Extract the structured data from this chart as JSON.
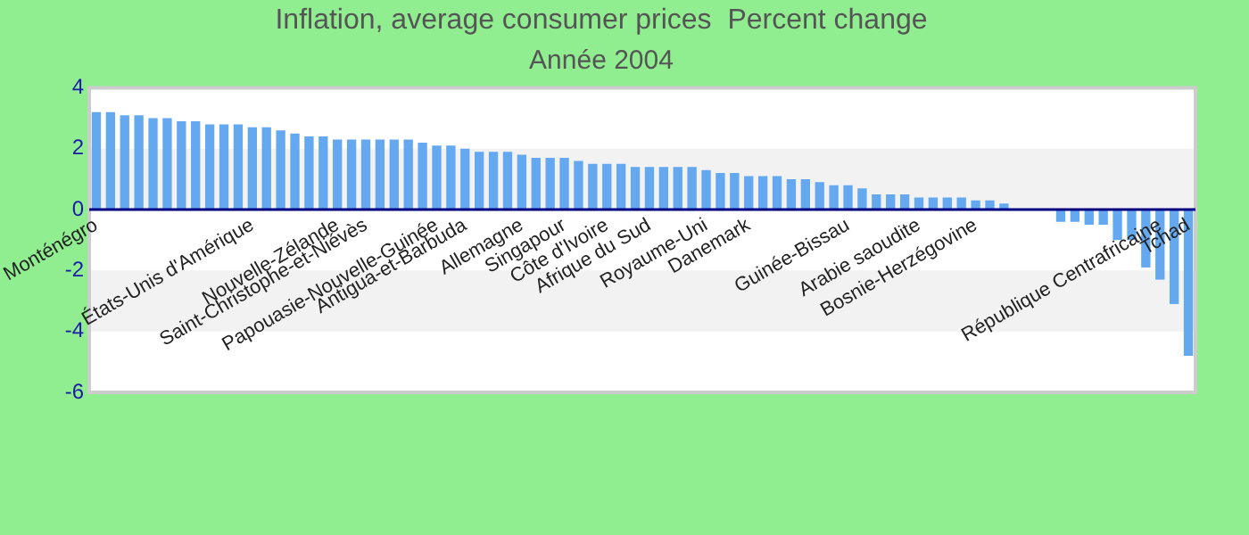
{
  "chart_data": {
    "type": "bar",
    "title": "Inflation, average consumer prices  Percent change",
    "subtitle": "Année 2004",
    "categories": [
      "Monténégro",
      null,
      null,
      null,
      null,
      null,
      null,
      null,
      null,
      null,
      null,
      "États-Unis d'Amérique",
      null,
      null,
      null,
      null,
      null,
      "Nouvelle-Zélande",
      null,
      "Saint-Christophe-et-Niévès",
      null,
      null,
      null,
      null,
      "Papouasie-Nouvelle-Guinée",
      null,
      "Antigua-et-Barbuda",
      null,
      null,
      null,
      "Allemagne",
      null,
      null,
      "Singapour",
      null,
      null,
      "Côte d'Ivoire",
      null,
      null,
      "Afrique du Sud",
      null,
      null,
      null,
      "Royaume-Uni",
      null,
      null,
      "Danemark",
      null,
      null,
      null,
      null,
      null,
      null,
      "Guinée-Bissau",
      null,
      null,
      null,
      null,
      "Arabie saoudite",
      null,
      null,
      null,
      "Bosnie-Herzégovine",
      null,
      null,
      null,
      null,
      null,
      null,
      null,
      null,
      null,
      null,
      null,
      null,
      "République Centrafricaine",
      null,
      "Tchad"
    ],
    "values": [
      3.2,
      3.2,
      3.1,
      3.1,
      3.0,
      3.0,
      2.9,
      2.9,
      2.8,
      2.8,
      2.8,
      2.7,
      2.7,
      2.6,
      2.5,
      2.4,
      2.4,
      2.3,
      2.3,
      2.3,
      2.3,
      2.3,
      2.3,
      2.2,
      2.1,
      2.1,
      2.0,
      1.9,
      1.9,
      1.9,
      1.8,
      1.7,
      1.7,
      1.7,
      1.6,
      1.5,
      1.5,
      1.5,
      1.4,
      1.4,
      1.4,
      1.4,
      1.4,
      1.3,
      1.2,
      1.2,
      1.1,
      1.1,
      1.1,
      1.0,
      1.0,
      0.9,
      0.8,
      0.8,
      0.7,
      0.5,
      0.5,
      0.5,
      0.4,
      0.4,
      0.4,
      0.4,
      0.3,
      0.3,
      0.2,
      0,
      0,
      0,
      -0.4,
      -0.4,
      -0.5,
      -0.5,
      -1.0,
      -1.0,
      -1.9,
      -2.3,
      -3.1,
      -4.8
    ],
    "color": "#64a8f0",
    "ylim": [
      -6,
      4
    ],
    "yticks": [
      -6,
      -4,
      -2,
      0,
      2,
      4
    ]
  }
}
